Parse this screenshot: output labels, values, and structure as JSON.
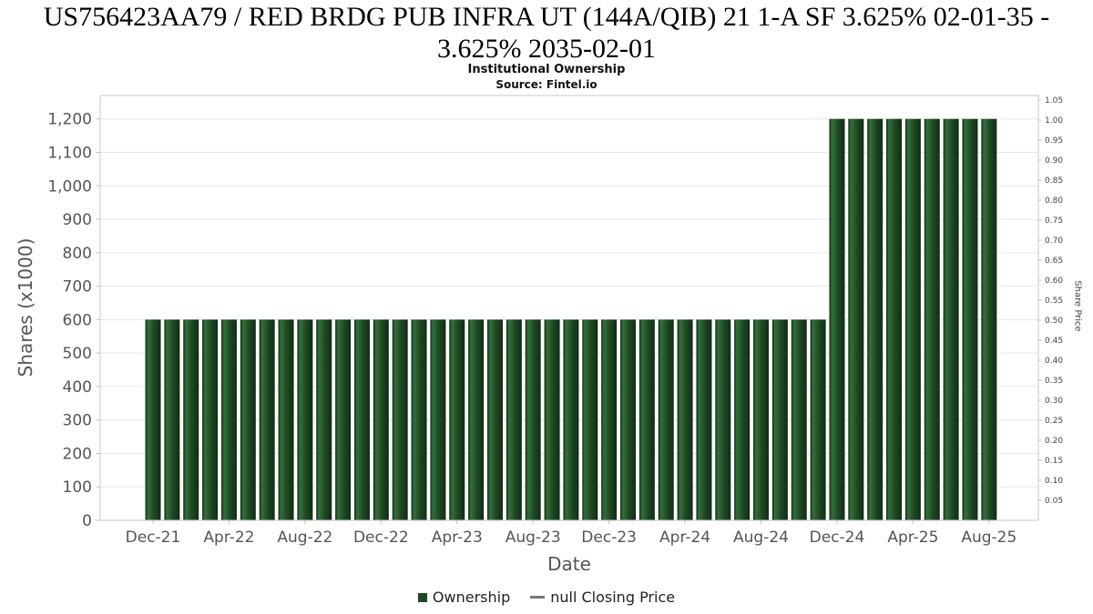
{
  "chart_data": {
    "type": "bar",
    "title": "US756423AA79 / RED BRDG PUB INFRA UT (144A/QIB) 21 1-A SF 3.625% 02-01-35 - 3.625% 2035-02-01",
    "subtitle": "Institutional Ownership",
    "source": "Source: Fintel.io",
    "xlabel": "Date",
    "ylabel": "Shares (x1000)",
    "y2label": "Share Price",
    "bar_color": "#1e4a24",
    "grid": true,
    "legend_position": "bottom",
    "ylim": [
      0,
      1270
    ],
    "y2lim": [
      0,
      1.05
    ],
    "categories": [
      "Dec-21",
      "Jan-22",
      "Feb-22",
      "Mar-22",
      "Apr-22",
      "May-22",
      "Jun-22",
      "Jul-22",
      "Aug-22",
      "Sep-22",
      "Oct-22",
      "Nov-22",
      "Dec-22",
      "Jan-23",
      "Feb-23",
      "Mar-23",
      "Apr-23",
      "May-23",
      "Jun-23",
      "Jul-23",
      "Aug-23",
      "Sep-23",
      "Oct-23",
      "Nov-23",
      "Dec-23",
      "Jan-24",
      "Feb-24",
      "Mar-24",
      "Apr-24",
      "May-24",
      "Jun-24",
      "Jul-24",
      "Aug-24",
      "Sep-24",
      "Oct-24",
      "Nov-24",
      "Dec-24",
      "Jan-25",
      "Feb-25",
      "Mar-25",
      "Apr-25",
      "May-25",
      "Jun-25",
      "Jul-25",
      "Aug-25"
    ],
    "values": [
      600,
      600,
      600,
      600,
      600,
      600,
      600,
      600,
      600,
      600,
      600,
      600,
      600,
      600,
      600,
      600,
      600,
      600,
      600,
      600,
      600,
      600,
      600,
      600,
      600,
      600,
      600,
      600,
      600,
      600,
      600,
      600,
      600,
      600,
      600,
      600,
      1200,
      1200,
      1200,
      1200,
      1200,
      1200,
      1200,
      1200,
      1200
    ],
    "series": [
      {
        "name": "Ownership",
        "axis": "left"
      }
    ],
    "y_ticks": [
      {
        "v": 0,
        "label": "0"
      },
      {
        "v": 100,
        "label": "100"
      },
      {
        "v": 200,
        "label": "200"
      },
      {
        "v": 300,
        "label": "300"
      },
      {
        "v": 400,
        "label": "400"
      },
      {
        "v": 500,
        "label": "500"
      },
      {
        "v": 600,
        "label": "600"
      },
      {
        "v": 700,
        "label": "700"
      },
      {
        "v": 800,
        "label": "800"
      },
      {
        "v": 900,
        "label": "900"
      },
      {
        "v": 1000,
        "label": "1,000"
      },
      {
        "v": 1100,
        "label": "1,100"
      },
      {
        "v": 1200,
        "label": "1,200"
      }
    ],
    "y2_ticks": [
      {
        "v": 0.05,
        "label": "0.05"
      },
      {
        "v": 0.1,
        "label": "0.10"
      },
      {
        "v": 0.15,
        "label": "0.15"
      },
      {
        "v": 0.2,
        "label": "0.20"
      },
      {
        "v": 0.25,
        "label": "0.25"
      },
      {
        "v": 0.3,
        "label": "0.30"
      },
      {
        "v": 0.35,
        "label": "0.35"
      },
      {
        "v": 0.4,
        "label": "0.40"
      },
      {
        "v": 0.45,
        "label": "0.45"
      },
      {
        "v": 0.5,
        "label": "0.50"
      },
      {
        "v": 0.55,
        "label": "0.55"
      },
      {
        "v": 0.6,
        "label": "0.60"
      },
      {
        "v": 0.65,
        "label": "0.65"
      },
      {
        "v": 0.7,
        "label": "0.70"
      },
      {
        "v": 0.75,
        "label": "0.75"
      },
      {
        "v": 0.8,
        "label": "0.80"
      },
      {
        "v": 0.85,
        "label": "0.85"
      },
      {
        "v": 0.9,
        "label": "0.90"
      },
      {
        "v": 0.95,
        "label": "0.95"
      },
      {
        "v": 1.0,
        "label": "1.00"
      },
      {
        "v": 1.05,
        "label": "1.05"
      }
    ],
    "x_ticks": [
      {
        "i": 0,
        "label": "Dec-21"
      },
      {
        "i": 4,
        "label": "Apr-22"
      },
      {
        "i": 8,
        "label": "Aug-22"
      },
      {
        "i": 12,
        "label": "Dec-22"
      },
      {
        "i": 16,
        "label": "Apr-23"
      },
      {
        "i": 20,
        "label": "Aug-23"
      },
      {
        "i": 24,
        "label": "Dec-23"
      },
      {
        "i": 28,
        "label": "Apr-24"
      },
      {
        "i": 32,
        "label": "Aug-24"
      },
      {
        "i": 36,
        "label": "Dec-24"
      },
      {
        "i": 40,
        "label": "Apr-25"
      },
      {
        "i": 44,
        "label": "Aug-25"
      }
    ],
    "legend": [
      {
        "label": "Ownership",
        "marker": "square",
        "color": "#1e4a24"
      },
      {
        "label": "null Closing Price",
        "marker": "dash",
        "color": "#777777"
      }
    ]
  }
}
